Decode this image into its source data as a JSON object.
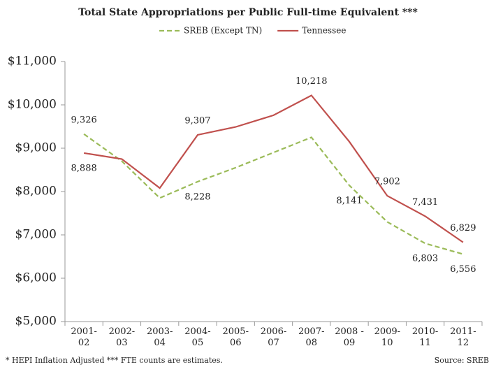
{
  "chart_data": {
    "type": "line",
    "title": "Total State Appropriations per Public Full-time Equivalent ***",
    "categories": [
      "2001-\n02",
      "2002-\n03",
      "2003-\n04",
      "2004-\n05",
      "2005-\n06",
      "2006-\n07",
      "2007-\n08",
      "2008 -\n09",
      "2009-\n10",
      "2010-\n11",
      "2011-\n12"
    ],
    "series": [
      {
        "name": "SREB (Except TN)",
        "color": "#9bbb59",
        "dash": true,
        "values": [
          9326,
          8700,
          7850,
          8228,
          8550,
          8900,
          9250,
          8141,
          7300,
          6803,
          6556
        ],
        "value_labels": [
          "9,326",
          null,
          null,
          "8,228",
          null,
          null,
          null,
          "8,141",
          null,
          "6,803",
          "6,556"
        ]
      },
      {
        "name": "Tennessee",
        "color": "#c0504d",
        "dash": false,
        "values": [
          8888,
          8750,
          8080,
          9307,
          9490,
          9760,
          10218,
          9150,
          7902,
          7431,
          6829
        ],
        "value_labels": [
          "8,888",
          null,
          null,
          "9,307",
          null,
          null,
          "10,218",
          null,
          "7,902",
          "7,431",
          "6,829"
        ]
      }
    ],
    "ylim": [
      5000,
      11000
    ],
    "yticks": [
      {
        "value": 5000,
        "label": "$5,000"
      },
      {
        "value": 6000,
        "label": "$6,000"
      },
      {
        "value": 7000,
        "label": "$7,000"
      },
      {
        "value": 8000,
        "label": "$8,000"
      },
      {
        "value": 9000,
        "label": "$9,000"
      },
      {
        "value": 10000,
        "label": "$10,000"
      },
      {
        "value": 11000,
        "label": "$11,000"
      }
    ],
    "grid": false,
    "footnote": "* HEPI Inflation Adjusted  *** FTE counts are estimates.",
    "source": "Source: SREB"
  }
}
